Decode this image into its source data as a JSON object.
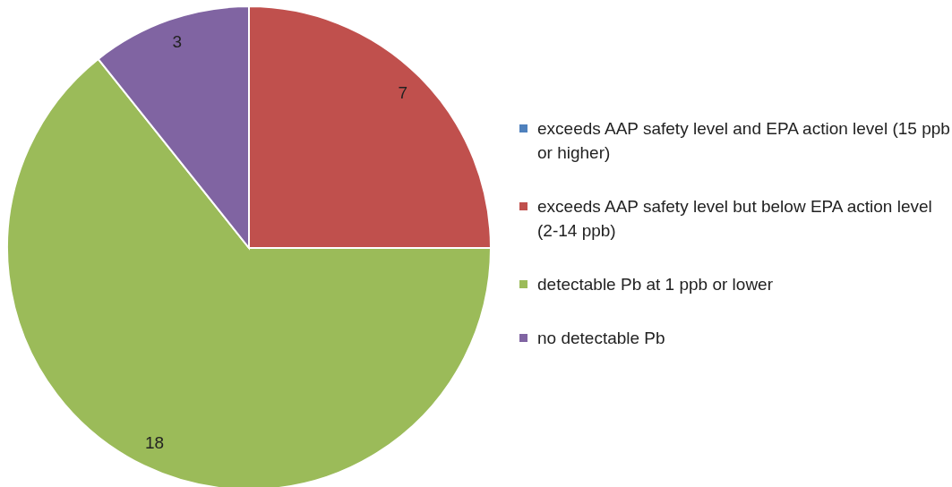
{
  "chart_data": {
    "type": "pie",
    "categories": [
      "exceeds AAP safety level and EPA action level (15 ppb or higher)",
      "exceeds AAP safety level but below EPA action level (2-14 ppb)",
      "detectable Pb at 1 ppb or lower",
      "no detectable Pb"
    ],
    "values": [
      0,
      7,
      18,
      3
    ],
    "colors": [
      "#4f81bd",
      "#c0504d",
      "#9bbb59",
      "#8064a2"
    ],
    "value_labels": [
      null,
      "7",
      "18",
      "3"
    ],
    "legend": "right"
  }
}
